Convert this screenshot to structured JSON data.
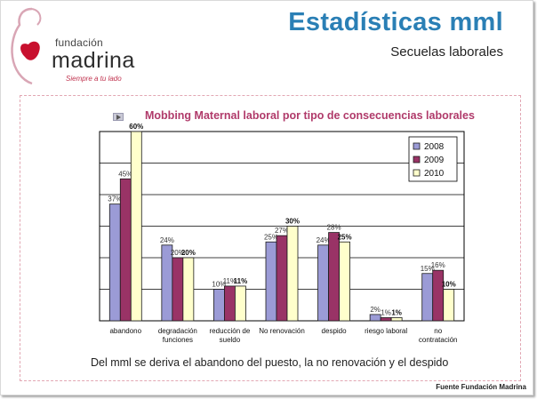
{
  "logo": {
    "line1": "fundación",
    "line2": "madrina",
    "tagline": "Siempre a tu lado"
  },
  "header": {
    "title": "Estadísticas mml",
    "subtitle": "Secuelas laborales"
  },
  "caption": "Del mml se deriva el abandono del puesto, la no renovación y el despido",
  "source": "Fuente Fundación Madrina",
  "colors": {
    "title": "#2a7fb5",
    "chart_title": "#b03a6a",
    "s2008": "#9b9bd6",
    "s2009": "#993366",
    "s2010": "#ffffcc"
  },
  "chart_data": {
    "type": "bar",
    "title": "Mobbing Maternal laboral por tipo de consecuencias laborales",
    "categories": [
      [
        "abandono"
      ],
      [
        "degradación",
        "funciones"
      ],
      [
        "reducción de",
        "sueldo"
      ],
      [
        "No renovación"
      ],
      [
        "despido"
      ],
      [
        "riesgo laboral"
      ],
      [
        "no",
        "contratación"
      ]
    ],
    "series": [
      {
        "name": "2008",
        "values": [
          37,
          24,
          10,
          25,
          24,
          2,
          15
        ],
        "labels": [
          "37%",
          "24%",
          "10%",
          "25%",
          "24%",
          "2%",
          "15%"
        ]
      },
      {
        "name": "2009",
        "values": [
          45,
          20,
          11,
          27,
          28,
          1,
          16
        ],
        "labels": [
          "45%",
          "20%",
          "11%",
          "27%",
          "28%",
          "1%",
          "16%"
        ]
      },
      {
        "name": "2010",
        "values": [
          60,
          20,
          11,
          30,
          25,
          1,
          10
        ],
        "labels": [
          "60%",
          "20%",
          "11%",
          "30%",
          "25%",
          "1%",
          "10%"
        ]
      }
    ],
    "ylim": [
      0,
      60
    ],
    "grid": true,
    "legend": "top-right"
  }
}
